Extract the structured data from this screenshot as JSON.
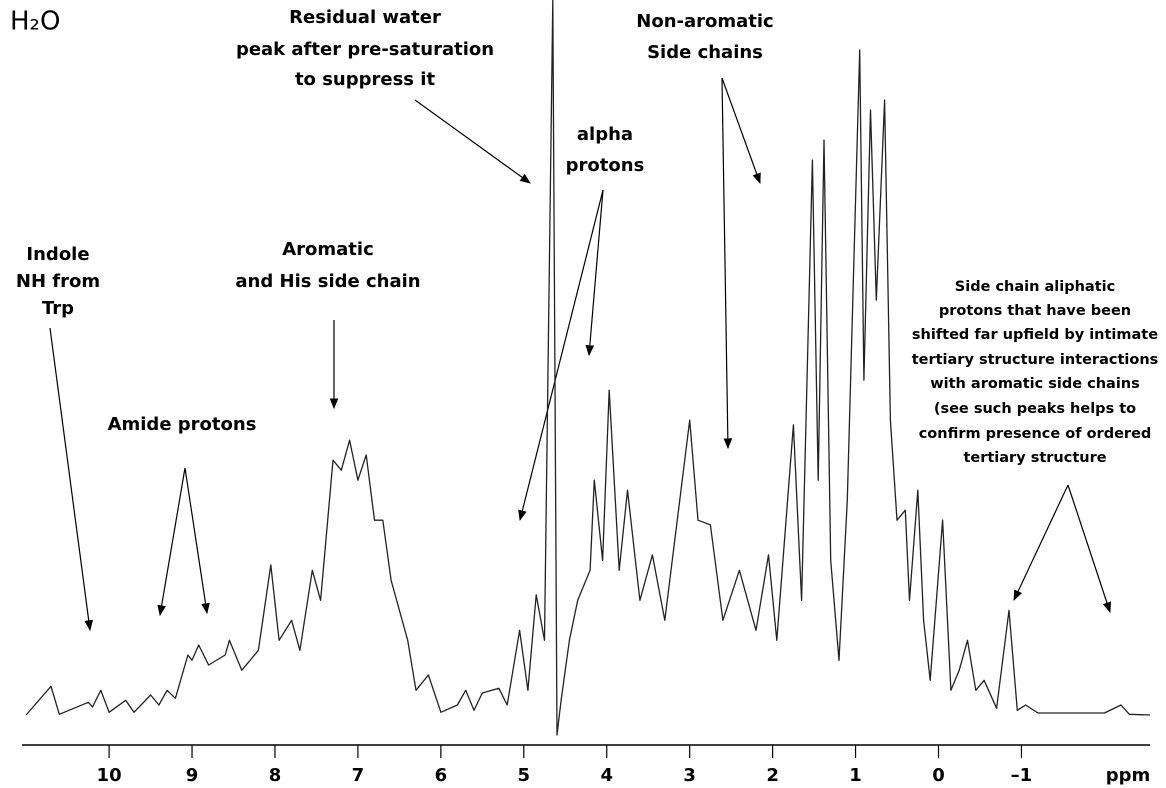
{
  "chart_data": {
    "type": "line",
    "corner_label": "H₂O",
    "x_axis_label": "ppm",
    "xlim": [
      11.05,
      -2.55
    ],
    "ylim": [
      0,
      100
    ],
    "xticks": [
      10,
      9,
      8,
      7,
      6,
      5,
      4,
      3,
      2,
      1,
      0,
      {
        "value": -1,
        "label": "–1"
      }
    ],
    "color": "#222222",
    "x": [
      11.0,
      10.7,
      10.6,
      10.25,
      10.2,
      10.1,
      10.0,
      9.8,
      9.7,
      9.5,
      9.4,
      9.3,
      9.2,
      9.05,
      9.0,
      8.92,
      8.8,
      8.6,
      8.55,
      8.4,
      8.2,
      8.05,
      7.95,
      7.8,
      7.7,
      7.55,
      7.45,
      7.3,
      7.2,
      7.1,
      7.0,
      6.9,
      6.8,
      6.7,
      6.6,
      6.4,
      6.3,
      6.15,
      6.0,
      5.8,
      5.7,
      5.6,
      5.5,
      5.3,
      5.2,
      5.05,
      4.95,
      4.85,
      4.75,
      4.65,
      4.6,
      4.55,
      4.45,
      4.35,
      4.2,
      4.15,
      4.05,
      3.97,
      3.85,
      3.75,
      3.6,
      3.45,
      3.3,
      3.0,
      2.9,
      2.75,
      2.6,
      2.4,
      2.2,
      2.05,
      1.95,
      1.75,
      1.65,
      1.52,
      1.45,
      1.38,
      1.3,
      1.2,
      1.1,
      0.95,
      0.9,
      0.82,
      0.75,
      0.65,
      0.58,
      0.5,
      0.4,
      0.35,
      0.25,
      0.18,
      0.1,
      -0.05,
      -0.15,
      -0.25,
      -0.35,
      -0.45,
      -0.55,
      -0.7,
      -0.85,
      -0.95,
      -1.05,
      -1.2,
      -2.0,
      -2.2,
      -2.3,
      -2.55
    ],
    "values": [
      0,
      4.3,
      0.1,
      1.9,
      1.2,
      3.7,
      0.4,
      2.2,
      0.4,
      3.0,
      1.5,
      3.7,
      2.5,
      9.0,
      8.2,
      10.5,
      7.5,
      9.0,
      11.2,
      6.7,
      9.7,
      22.5,
      11.2,
      14.2,
      9.7,
      21.7,
      17.2,
      38.2,
      36.7,
      41.2,
      35.2,
      39.0,
      29.2,
      29.2,
      20.2,
      11.2,
      3.7,
      6.0,
      0.4,
      1.5,
      3.7,
      0.7,
      3.3,
      4.0,
      1.5,
      12.7,
      3.7,
      18.0,
      11.2,
      107.2,
      -3.0,
      2.2,
      11.2,
      17.2,
      21.7,
      35.2,
      23.2,
      48.7,
      21.7,
      33.7,
      17.2,
      24.0,
      14.2,
      44.2,
      29.2,
      28.5,
      14.2,
      21.7,
      12.7,
      24.0,
      11.2,
      43.5,
      17.2,
      83.2,
      35.2,
      86.2,
      23.2,
      8.2,
      32.2,
      99.7,
      50.2,
      90.7,
      62.2,
      92.2,
      44.2,
      29.2,
      30.7,
      17.2,
      33.7,
      14.2,
      5.2,
      29.2,
      3.7,
      6.7,
      11.2,
      3.7,
      5.2,
      1.0,
      15.7,
      0.7,
      1.5,
      0.3,
      0.3,
      1.5,
      0.1,
      0
    ],
    "annotations": [
      {
        "lines": [
          "Indole",
          "NH from",
          "Trp"
        ]
      },
      {
        "lines": [
          "Amide protons"
        ]
      },
      {
        "lines": [
          "Aromatic",
          "and His side chain"
        ]
      },
      {
        "lines": [
          "Residual water",
          "peak after pre-saturation",
          "to suppress it"
        ]
      },
      {
        "lines": [
          "alpha",
          "protons"
        ]
      },
      {
        "lines": [
          "Non-aromatic",
          "Side chains"
        ]
      },
      {
        "lines": [
          "Side chain aliphatic",
          "protons that have been",
          "shifted far upfield by intimate",
          "tertiary structure interactions",
          "with aromatic side chains",
          "(see such peaks helps to",
          "confirm presence of ordered",
          "tertiary structure"
        ]
      }
    ]
  }
}
